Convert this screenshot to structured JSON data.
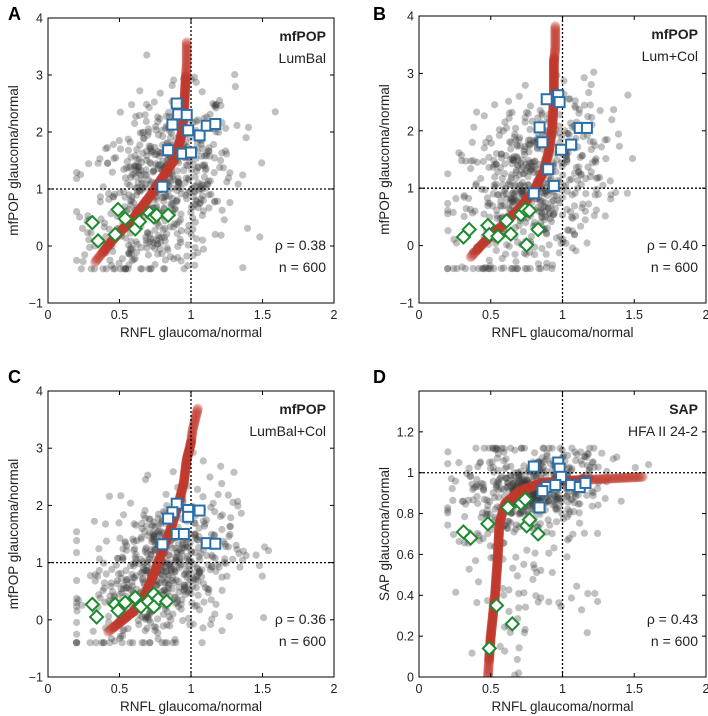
{
  "chart_data": [
    {
      "type": "scatter",
      "panel": "A",
      "title_bold": "mfPOP",
      "title_sub": "LumBal",
      "xlabel": "RNFL glaucoma/normal",
      "ylabel": "mfPOP glaucoma/normal",
      "xlim": [
        0,
        2
      ],
      "ylim": [
        -1,
        4
      ],
      "xticks": [
        0,
        0.5,
        1,
        1.5,
        2
      ],
      "xtick_labels": [
        "0",
        "0.5",
        "1",
        "1.5",
        "2"
      ],
      "yticks": [
        -1,
        0,
        1,
        2,
        3,
        4
      ],
      "ytick_labels": [
        "−1",
        "0",
        "1",
        "2",
        "3",
        "4"
      ],
      "reference_lines": {
        "x": 1,
        "y": 1
      },
      "rho_text": "ρ = 0.38",
      "n_text": "n = 600",
      "n": 600,
      "squares": [
        [
          0.9,
          2.5
        ],
        [
          0.91,
          2.31
        ],
        [
          0.97,
          2.3
        ],
        [
          0.87,
          2.13
        ],
        [
          0.98,
          2.03
        ],
        [
          1.06,
          1.94
        ],
        [
          1.11,
          2.11
        ],
        [
          1.17,
          2.14
        ],
        [
          0.84,
          1.68
        ],
        [
          0.94,
          1.62
        ],
        [
          1.0,
          1.64
        ],
        [
          0.8,
          1.04
        ]
      ],
      "diamonds": [
        [
          0.31,
          0.41
        ],
        [
          0.35,
          0.09
        ],
        [
          0.49,
          0.64
        ],
        [
          0.54,
          0.48
        ],
        [
          0.47,
          0.2
        ],
        [
          0.61,
          0.3
        ],
        [
          0.64,
          0.43
        ],
        [
          0.71,
          0.58
        ],
        [
          0.74,
          0.51
        ],
        [
          0.76,
          0.54
        ],
        [
          0.84,
          0.54
        ]
      ],
      "trend": [
        [
          0.33,
          -0.28
        ],
        [
          0.45,
          0.1
        ],
        [
          0.6,
          0.5
        ],
        [
          0.72,
          0.9
        ],
        [
          0.8,
          1.2
        ],
        [
          0.88,
          1.5
        ],
        [
          0.93,
          1.9
        ],
        [
          0.95,
          2.3
        ],
        [
          0.96,
          2.8
        ],
        [
          0.97,
          3.2
        ],
        [
          0.97,
          3.6
        ]
      ],
      "cloud": {
        "x_mean": 0.8,
        "x_sd": 0.25,
        "y_mean": 1.0,
        "y_sd": 0.75,
        "slope": 1.6
      }
    },
    {
      "type": "scatter",
      "panel": "B",
      "title_bold": "mfPOP",
      "title_sub": "Lum+Col",
      "xlabel": "RNFL glaucoma/normal",
      "ylabel": "mfPOP glaucoma/normal",
      "xlim": [
        0,
        2
      ],
      "ylim": [
        -1,
        4
      ],
      "xticks": [
        0,
        0.5,
        1,
        1.5,
        2
      ],
      "xtick_labels": [
        "0",
        "0.5",
        "1",
        "1.5",
        "2"
      ],
      "yticks": [
        -1,
        0,
        1,
        2,
        3,
        4
      ],
      "ytick_labels": [
        "−1",
        "0",
        "1",
        "2",
        "3",
        "4"
      ],
      "reference_lines": {
        "x": 1,
        "y": 1
      },
      "rho_text": "ρ = 0.40",
      "n_text": "n = 600",
      "n": 600,
      "squares": [
        [
          0.89,
          2.55
        ],
        [
          0.97,
          2.62
        ],
        [
          0.98,
          2.5
        ],
        [
          0.84,
          2.06
        ],
        [
          0.86,
          1.8
        ],
        [
          0.99,
          1.67
        ],
        [
          1.06,
          1.76
        ],
        [
          1.12,
          2.05
        ],
        [
          1.17,
          2.05
        ],
        [
          0.9,
          1.33
        ],
        [
          0.94,
          1.04
        ],
        [
          0.8,
          0.91
        ]
      ],
      "diamonds": [
        [
          0.31,
          0.15
        ],
        [
          0.35,
          0.28
        ],
        [
          0.48,
          0.35
        ],
        [
          0.49,
          0.19
        ],
        [
          0.55,
          0.16
        ],
        [
          0.61,
          0.43
        ],
        [
          0.64,
          0.2
        ],
        [
          0.71,
          0.54
        ],
        [
          0.74,
          0.63
        ],
        [
          0.77,
          0.61
        ],
        [
          0.75,
          0.01
        ],
        [
          0.83,
          0.28
        ]
      ],
      "trend": [
        [
          0.36,
          -0.2
        ],
        [
          0.45,
          0.05
        ],
        [
          0.58,
          0.35
        ],
        [
          0.7,
          0.65
        ],
        [
          0.8,
          0.95
        ],
        [
          0.87,
          1.3
        ],
        [
          0.91,
          1.7
        ],
        [
          0.93,
          2.1
        ],
        [
          0.94,
          2.6
        ],
        [
          0.94,
          3.2
        ],
        [
          0.95,
          3.45
        ],
        [
          0.95,
          3.85
        ]
      ],
      "cloud": {
        "x_mean": 0.8,
        "x_sd": 0.25,
        "y_mean": 1.05,
        "y_sd": 0.75,
        "slope": 1.7
      }
    },
    {
      "type": "scatter",
      "panel": "C",
      "title_bold": "mfPOP",
      "title_sub": "LumBal+Col",
      "xlabel": "RNFL glaucoma/normal",
      "ylabel": "mfPOP glaucoma/normal",
      "xlim": [
        0,
        2
      ],
      "ylim": [
        -1,
        4
      ],
      "xticks": [
        0,
        0.5,
        1,
        1.5,
        2
      ],
      "xtick_labels": [
        "0",
        "0.5",
        "1",
        "1.5",
        "2"
      ],
      "yticks": [
        -1,
        0,
        1,
        2,
        3,
        4
      ],
      "ytick_labels": [
        "−1",
        "0",
        "1",
        "2",
        "3",
        "4"
      ],
      "reference_lines": {
        "x": 1,
        "y": 1
      },
      "rho_text": "ρ = 0.36",
      "n_text": "n = 600",
      "n": 600,
      "squares": [
        [
          0.9,
          2.03
        ],
        [
          0.87,
          1.88
        ],
        [
          0.84,
          1.77
        ],
        [
          0.98,
          1.92
        ],
        [
          0.98,
          1.8
        ],
        [
          1.06,
          1.91
        ],
        [
          0.9,
          1.5
        ],
        [
          0.95,
          1.5
        ],
        [
          0.8,
          1.32
        ],
        [
          1.11,
          1.34
        ],
        [
          1.17,
          1.33
        ]
      ],
      "diamonds": [
        [
          0.31,
          0.27
        ],
        [
          0.34,
          0.05
        ],
        [
          0.47,
          0.27
        ],
        [
          0.49,
          0.16
        ],
        [
          0.54,
          0.3
        ],
        [
          0.61,
          0.39
        ],
        [
          0.65,
          0.23
        ],
        [
          0.7,
          0.32
        ],
        [
          0.74,
          0.45
        ],
        [
          0.77,
          0.36
        ],
        [
          0.74,
          0.23
        ],
        [
          0.83,
          0.32
        ]
      ],
      "trend": [
        [
          0.42,
          -0.21
        ],
        [
          0.5,
          -0.05
        ],
        [
          0.6,
          0.15
        ],
        [
          0.68,
          0.45
        ],
        [
          0.74,
          0.8
        ],
        [
          0.8,
          1.2
        ],
        [
          0.86,
          1.6
        ],
        [
          0.91,
          2.0
        ],
        [
          0.95,
          2.4
        ],
        [
          0.97,
          2.8
        ],
        [
          1.0,
          3.1
        ],
        [
          1.01,
          3.3
        ],
        [
          1.05,
          3.72
        ]
      ],
      "cloud": {
        "x_mean": 0.8,
        "x_sd": 0.25,
        "y_mean": 0.85,
        "y_sd": 0.65,
        "slope": 1.4
      }
    },
    {
      "type": "scatter",
      "panel": "D",
      "title_bold": "SAP",
      "title_sub": "HFA II 24-2",
      "xlabel": "RNFL glaucoma/normal",
      "ylabel": "SAP glaucoma/normal",
      "xlim": [
        0,
        2
      ],
      "ylim": [
        0,
        1.4
      ],
      "xticks": [
        0,
        0.5,
        1,
        1.5,
        2
      ],
      "xtick_labels": [
        "0",
        "0.5",
        "1",
        "1.5",
        "2"
      ],
      "yticks": [
        0,
        0.2,
        0.4,
        0.6,
        0.8,
        1,
        1.2
      ],
      "ytick_labels": [
        "0",
        "0.2",
        "0.4",
        "0.6",
        "0.8",
        "1",
        "1.2"
      ],
      "reference_lines": {
        "x": 1,
        "y": 1
      },
      "rho_text": "ρ = 0.43",
      "n_text": "n = 600",
      "n": 600,
      "squares": [
        [
          0.8,
          1.03
        ],
        [
          0.97,
          1.05
        ],
        [
          0.98,
          1.02
        ],
        [
          0.99,
          0.98
        ],
        [
          0.89,
          0.93
        ],
        [
          0.86,
          0.91
        ],
        [
          0.95,
          0.94
        ],
        [
          1.06,
          0.94
        ],
        [
          1.12,
          0.93
        ],
        [
          1.16,
          0.95
        ],
        [
          0.84,
          0.83
        ]
      ],
      "diamonds": [
        [
          0.31,
          0.71
        ],
        [
          0.36,
          0.68
        ],
        [
          0.48,
          0.75
        ],
        [
          0.62,
          0.83
        ],
        [
          0.71,
          0.85
        ],
        [
          0.74,
          0.87
        ],
        [
          0.75,
          0.74
        ],
        [
          0.77,
          0.77
        ],
        [
          0.83,
          0.7
        ],
        [
          0.54,
          0.35
        ],
        [
          0.65,
          0.26
        ],
        [
          0.49,
          0.14
        ]
      ],
      "trend": [
        [
          0.48,
          0
        ],
        [
          0.5,
          0.2
        ],
        [
          0.53,
          0.4
        ],
        [
          0.55,
          0.6
        ],
        [
          0.56,
          0.75
        ],
        [
          0.6,
          0.85
        ],
        [
          0.7,
          0.91
        ],
        [
          0.85,
          0.95
        ],
        [
          1.0,
          0.96
        ],
        [
          1.3,
          0.97
        ],
        [
          1.57,
          0.98
        ]
      ],
      "cloud": {
        "x_mean": 0.78,
        "x_sd": 0.25,
        "y_mean": 0.92,
        "y_sd": 0.09,
        "slope": 0.15
      }
    }
  ],
  "colors": {
    "cloud": "#3a3a3a",
    "trend": "#c0392b",
    "square": "#2a6fa8",
    "diamond": "#1e8a2e"
  }
}
